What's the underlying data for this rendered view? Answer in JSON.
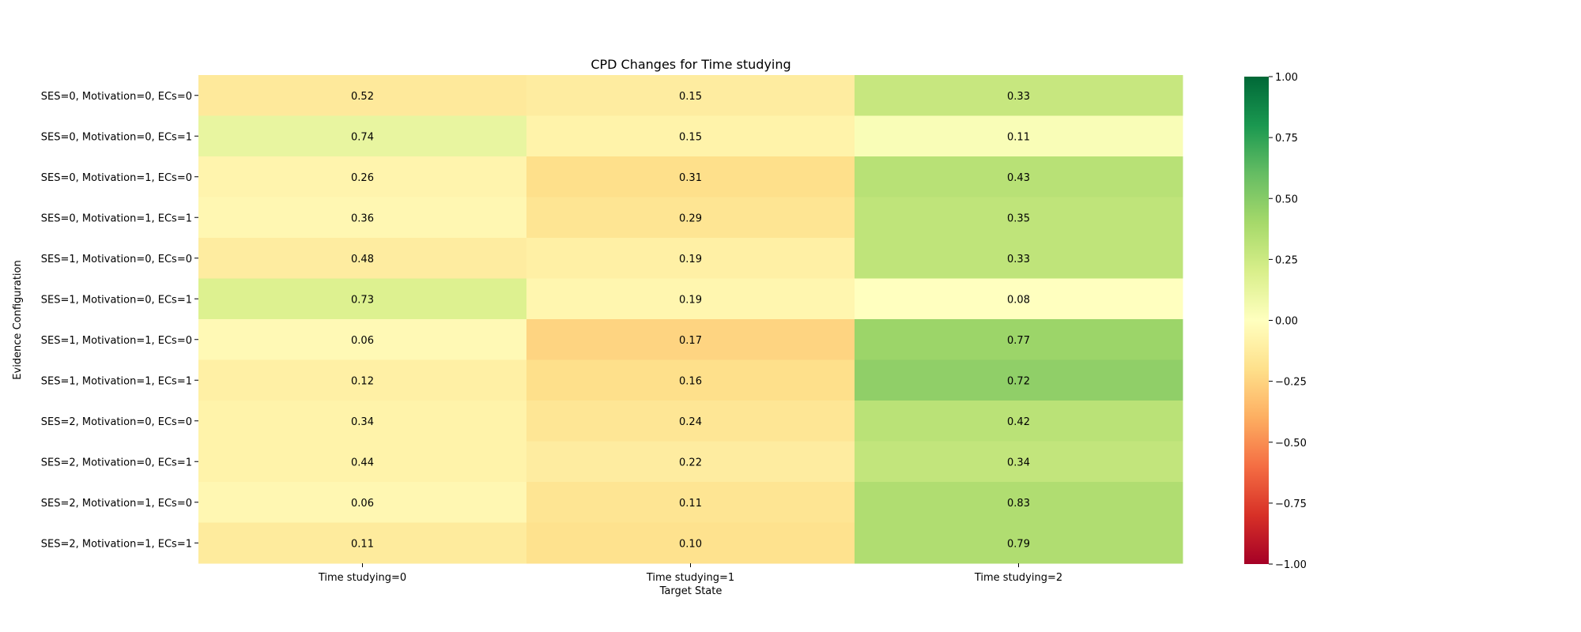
{
  "chart_data": {
    "type": "heatmap",
    "title": "CPD Changes for Time studying",
    "xlabel": "Target State",
    "ylabel": "Evidence Configuration",
    "columns": [
      "Time studying=0",
      "Time studying=1",
      "Time studying=2"
    ],
    "rows": [
      "SES=0, Motivation=0, ECs=0",
      "SES=0, Motivation=0, ECs=1",
      "SES=0, Motivation=1, ECs=0",
      "SES=0, Motivation=1, ECs=1",
      "SES=1, Motivation=0, ECs=0",
      "SES=1, Motivation=0, ECs=1",
      "SES=1, Motivation=1, ECs=0",
      "SES=1, Motivation=1, ECs=1",
      "SES=2, Motivation=0, ECs=0",
      "SES=2, Motivation=0, ECs=1",
      "SES=2, Motivation=1, ECs=0",
      "SES=2, Motivation=1, ECs=1"
    ],
    "labels": [
      [
        "0.52",
        "0.15",
        "0.33"
      ],
      [
        "0.74",
        "0.15",
        "0.11"
      ],
      [
        "0.26",
        "0.31",
        "0.43"
      ],
      [
        "0.36",
        "0.29",
        "0.35"
      ],
      [
        "0.48",
        "0.19",
        "0.33"
      ],
      [
        "0.73",
        "0.19",
        "0.08"
      ],
      [
        "0.06",
        "0.17",
        "0.77"
      ],
      [
        "0.12",
        "0.16",
        "0.72"
      ],
      [
        "0.34",
        "0.24",
        "0.42"
      ],
      [
        "0.44",
        "0.22",
        "0.34"
      ],
      [
        "0.06",
        "0.11",
        "0.83"
      ],
      [
        "0.11",
        "0.10",
        "0.79"
      ]
    ],
    "color_values": [
      [
        -0.14,
        -0.12,
        0.27
      ],
      [
        0.12,
        -0.08,
        0.03
      ],
      [
        -0.07,
        -0.2,
        0.33
      ],
      [
        -0.05,
        -0.17,
        0.3
      ],
      [
        -0.12,
        -0.1,
        0.3
      ],
      [
        0.18,
        -0.06,
        0.0
      ],
      [
        -0.04,
        -0.25,
        0.43
      ],
      [
        -0.1,
        -0.2,
        0.47
      ],
      [
        -0.08,
        -0.16,
        0.32
      ],
      [
        -0.08,
        -0.12,
        0.29
      ],
      [
        -0.05,
        -0.17,
        0.36
      ],
      [
        -0.13,
        -0.19,
        0.36
      ]
    ],
    "colormap": "RdYlGn",
    "colorbar": {
      "range": [
        -1.0,
        1.0
      ],
      "ticks": [
        1.0,
        0.75,
        0.5,
        0.25,
        0.0,
        -0.25,
        -0.5,
        -0.75,
        -1.0
      ],
      "tick_labels": [
        "1.00",
        "0.75",
        "0.50",
        "0.25",
        "0.00",
        "−0.25",
        "−0.50",
        "−0.75",
        "−1.00"
      ]
    }
  }
}
